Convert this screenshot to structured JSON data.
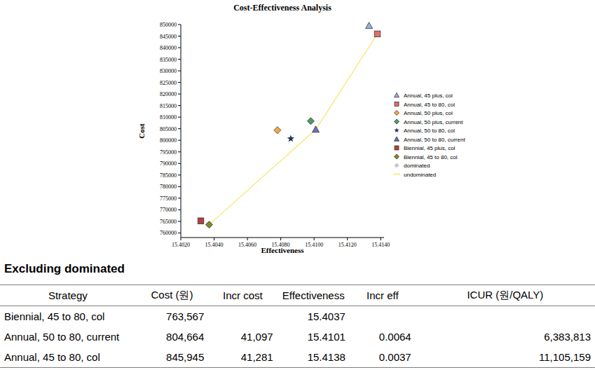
{
  "chart_data": {
    "type": "scatter",
    "title": "Cost-Effectiveness Analysis",
    "x_label": "Effectiveness",
    "y_label": "Cost",
    "xlim": [
      15.402,
      15.4142
    ],
    "xticks": [
      {
        "value": 15.402,
        "label": "15.4020"
      },
      {
        "value": 15.404,
        "label": "15.4040"
      },
      {
        "value": 15.406,
        "label": "15.4060"
      },
      {
        "value": 15.408,
        "label": "15.4080"
      },
      {
        "value": 15.41,
        "label": "15.4100"
      },
      {
        "value": 15.412,
        "label": "15.4120"
      },
      {
        "value": 15.414,
        "label": "15.4140"
      }
    ],
    "ylim": [
      758000,
      850000
    ],
    "yticks": [
      760000,
      765000,
      770000,
      775000,
      780000,
      785000,
      790000,
      795000,
      800000,
      805000,
      810000,
      815000,
      820000,
      825000,
      830000,
      835000,
      840000,
      845000,
      850000
    ],
    "grid": false,
    "legend": "right",
    "series": [
      {
        "name": "Annual, 45 plus, col",
        "color": "#8db3e2",
        "marker": "triangle",
        "x": [
          15.4133
        ],
        "values": [
          849500
        ]
      },
      {
        "name": "Annual, 45 to 80, col",
        "color": "#e46c6c",
        "marker": "square",
        "x": [
          15.4138
        ],
        "values": [
          845945
        ]
      },
      {
        "name": "Annual, 50 plus, col",
        "color": "#f2a94a",
        "marker": "diamond",
        "x": [
          15.4078
        ],
        "values": [
          804400
        ]
      },
      {
        "name": "Annual, 50 plus, current",
        "color": "#4f9a6b",
        "marker": "diamond",
        "x": [
          15.4098
        ],
        "values": [
          808300
        ]
      },
      {
        "name": "Annual, 50 to 80, col",
        "color": "#1f3350",
        "marker": "star",
        "x": [
          15.4086
        ],
        "values": [
          800700
        ]
      },
      {
        "name": "Annual, 50 to 80, current",
        "color": "#6b6fc4",
        "marker": "triangle",
        "x": [
          15.4101
        ],
        "values": [
          804664
        ]
      },
      {
        "name": "Biennial, 45 plus, col",
        "color": "#b5403d",
        "marker": "square",
        "x": [
          15.4032
        ],
        "values": [
          765200
        ]
      },
      {
        "name": "Biennial, 45 to 80, col",
        "color": "#7d8a2a",
        "marker": "diamond",
        "x": [
          15.4037
        ],
        "values": [
          763567
        ]
      },
      {
        "name": "dominated",
        "color": "#c8c8c8",
        "marker": "circle",
        "x": [],
        "values": []
      },
      {
        "name": "undominated",
        "color": "#f5e66a",
        "type": "line",
        "marker": "none",
        "line_style": "solid",
        "x": [
          15.4037,
          15.4101,
          15.4138
        ],
        "values": [
          763567,
          804664,
          845945
        ]
      }
    ]
  },
  "table": {
    "title": "Excluding dominated",
    "header": [
      "Strategy",
      "Cost (원)",
      "Incr cost",
      "Effectiveness",
      "Incr eff",
      "ICUR (원/QALY)"
    ],
    "rows": [
      [
        "Biennial, 45 to 80, col",
        "763,567",
        null,
        "15.4037",
        null,
        null
      ],
      [
        "Annual, 50 to 80, current",
        "804,664",
        "41,097",
        "15.4101",
        "0.0064",
        "6,383,813"
      ],
      [
        "Annual, 45 to 80, col",
        "845,945",
        "41,281",
        "15.4138",
        "0.0037",
        "11,105,159"
      ]
    ]
  }
}
